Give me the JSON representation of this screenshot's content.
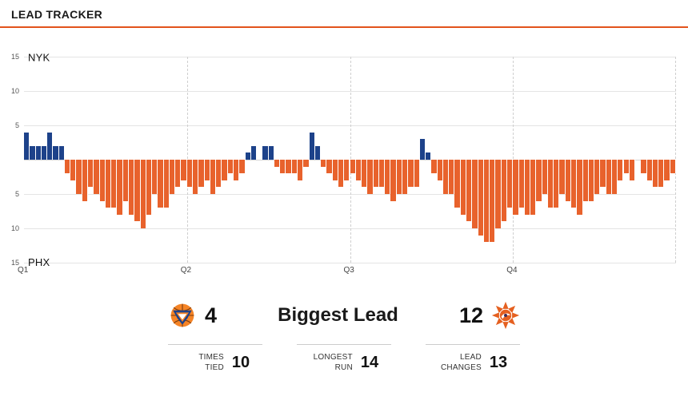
{
  "header": {
    "title": "LEAD TRACKER"
  },
  "colors": {
    "accent": "#e2531c",
    "nyk_blue": "#1d428a",
    "phx_orange": "#e8622c",
    "grid": "#e4e4e4"
  },
  "chart_data": {
    "type": "bar",
    "title": "Lead Tracker",
    "teams": {
      "top": {
        "abbr": "NYK",
        "color": "#1d428a"
      },
      "bottom": {
        "abbr": "PHX",
        "color": "#e8622c"
      }
    },
    "ylim": [
      -15,
      15
    ],
    "yticks_top": [
      "15",
      "10",
      "5"
    ],
    "yticks_bottom": [
      "5",
      "10",
      "15"
    ],
    "x_labels": [
      "Q1",
      "Q2",
      "Q3",
      "Q4"
    ],
    "legend": "positive values = NYK lead (blue, up), negative = PHX lead (orange, down), 0 = tied",
    "leads": [
      4,
      2,
      2,
      2,
      4,
      2,
      2,
      -2,
      -3,
      -5,
      -6,
      -4,
      -5,
      -6,
      -7,
      -7,
      -8,
      -6,
      -8,
      -9,
      -10,
      -8,
      -5,
      -7,
      -7,
      -5,
      -4,
      -3,
      -4,
      -5,
      -4,
      -3,
      -5,
      -4,
      -3,
      -2,
      -3,
      -2,
      1,
      2,
      0,
      2,
      2,
      -1,
      -2,
      -2,
      -2,
      -3,
      -1,
      4,
      2,
      -1,
      -2,
      -3,
      -4,
      -3,
      -2,
      -3,
      -4,
      -5,
      -4,
      -4,
      -5,
      -6,
      -5,
      -5,
      -4,
      -4,
      3,
      1,
      -2,
      -3,
      -5,
      -5,
      -7,
      -8,
      -9,
      -10,
      -11,
      -12,
      -12,
      -10,
      -9,
      -7,
      -8,
      -7,
      -8,
      -8,
      -6,
      -5,
      -7,
      -7,
      -5,
      -6,
      -7,
      -8,
      -6,
      -6,
      -5,
      -4,
      -5,
      -5,
      -3,
      -2,
      -3,
      0,
      -2,
      -3,
      -4,
      -4,
      -3,
      -2
    ]
  },
  "stats": {
    "biggest_lead": {
      "label": "Biggest Lead",
      "nyk_value": "4",
      "phx_value": "12"
    },
    "secondary": [
      {
        "label": "TIMES TIED",
        "value": "10"
      },
      {
        "label": "LONGEST RUN",
        "value": "14"
      },
      {
        "label": "LEAD CHANGES",
        "value": "13"
      }
    ]
  }
}
